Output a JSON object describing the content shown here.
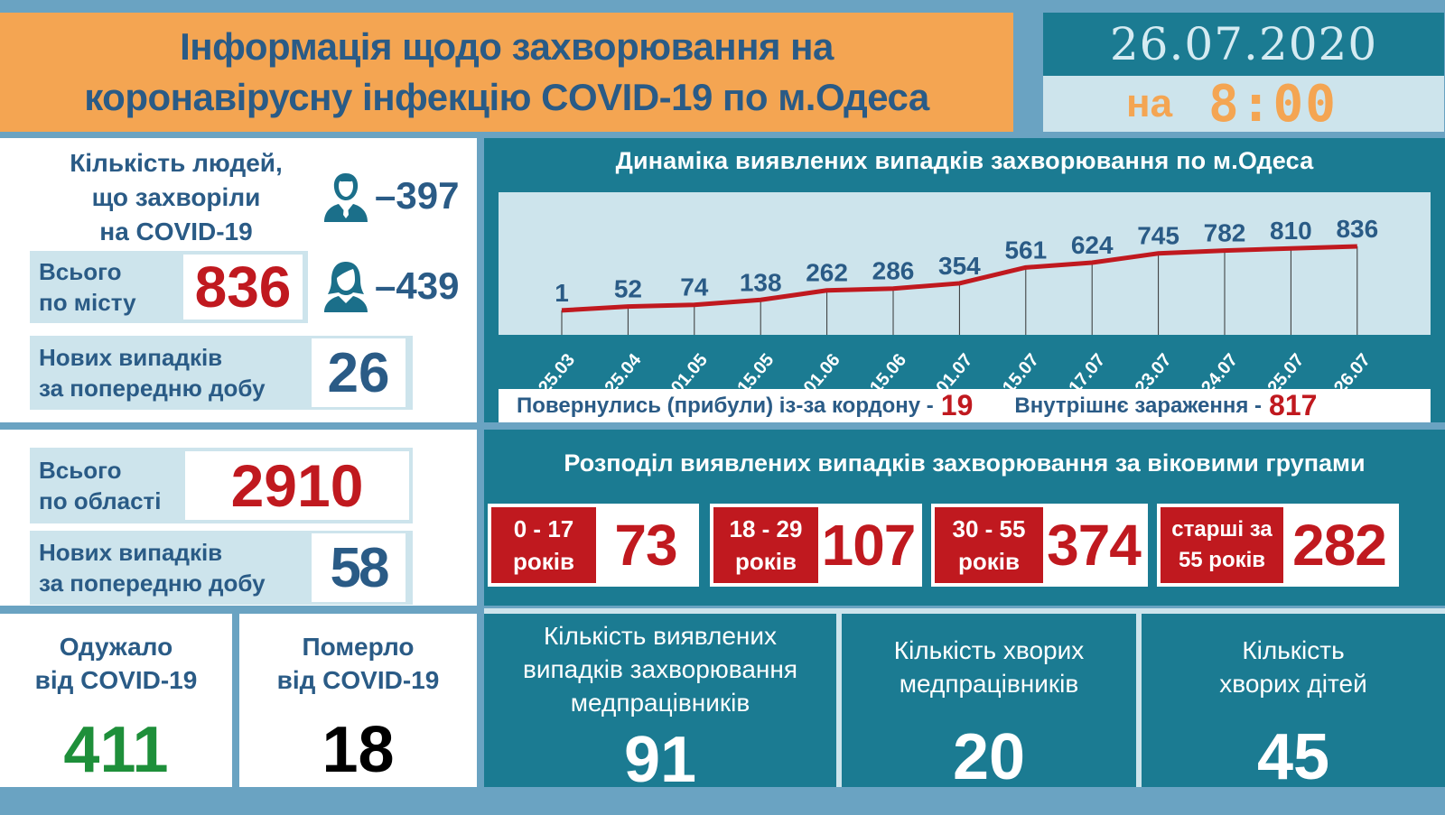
{
  "header": {
    "title_line1": "Інформація щодо захворювання на",
    "title_line2": "коронавірусну інфекцію COVID-19 по м.Одеса",
    "date": "26.07.2020",
    "time_prefix": "на",
    "time": "8:00"
  },
  "city": {
    "people_title_line1": "Кількість людей,",
    "people_title_line2": "що захворіли",
    "people_title_line3": "на COVID-19",
    "male_icon": "male-person-icon",
    "male_count": "–397",
    "female_icon": "female-person-icon",
    "female_count": "–439",
    "total_label_line1": "Всього",
    "total_label_line2": "по місту",
    "total_value": "836",
    "new_label_line1": "Нових випадків",
    "new_label_line2": "за попередню добу",
    "new_value": "26"
  },
  "region": {
    "total_label_line1": "Всього",
    "total_label_line2": "по області",
    "total_value": "2910",
    "new_label_line1": "Нових випадків",
    "new_label_line2": "за попередню добу",
    "new_value": "58"
  },
  "chart": {
    "title": "Динаміка виявлених випадків захворювання по м.Одеса",
    "imported_label": "Повернулись (прибули) із-за кордону -",
    "imported_value": "19",
    "local_label": "Внутрішнє зараження  -",
    "local_value": "817"
  },
  "chart_data": {
    "type": "line",
    "title": "Динаміка виявлених випадків захворювання по м.Одеса",
    "categories": [
      "25.03",
      "25.04",
      "01.05",
      "15.05",
      "01.06",
      "15.06",
      "01.07",
      "15.07",
      "17.07",
      "23.07",
      "24.07",
      "25.07",
      "26.07"
    ],
    "values": [
      1,
      52,
      74,
      138,
      262,
      286,
      354,
      561,
      624,
      745,
      782,
      810,
      836
    ],
    "xlabel": "",
    "ylabel": "",
    "grid": false,
    "data_labels": true,
    "line_color": "#c0191f",
    "label_color": "#2a5b86"
  },
  "age_groups": {
    "title": "Розподіл виявлених випадків захворювання за віковими групами",
    "groups": [
      {
        "label_line1": "0 - 17",
        "label_line2": "років",
        "value": "73"
      },
      {
        "label_line1": "18 - 29",
        "label_line2": "років",
        "value": "107"
      },
      {
        "label_line1": "30 - 55",
        "label_line2": "років",
        "value": "374"
      },
      {
        "label_line1": "старші за",
        "label_line2": "55 років",
        "value": "282"
      }
    ]
  },
  "bottom": {
    "recovered_line1": "Одужало",
    "recovered_line2": "від COVID-19",
    "recovered_value": "411",
    "died_line1": "Померло",
    "died_line2": "від COVID-19",
    "died_value": "18",
    "med_cases_line1": "Кількість виявлених",
    "med_cases_line2": "випадків захворювання",
    "med_cases_line3": "медпрацівників",
    "med_cases_value": "91",
    "med_sick_line1": "Кількість хворих",
    "med_sick_line2": "медпрацівників",
    "med_sick_value": "20",
    "kids_line1": "Кількість",
    "kids_line2": "хворих дітей",
    "kids_value": "45"
  },
  "colors": {
    "orange": "#f4a552",
    "teal": "#1b7b92",
    "light_blue": "#cde4ec",
    "frame_blue": "#6aa3c2",
    "red": "#c0191f",
    "dark_blue": "#2a5b86",
    "green": "#1e8f3a"
  }
}
